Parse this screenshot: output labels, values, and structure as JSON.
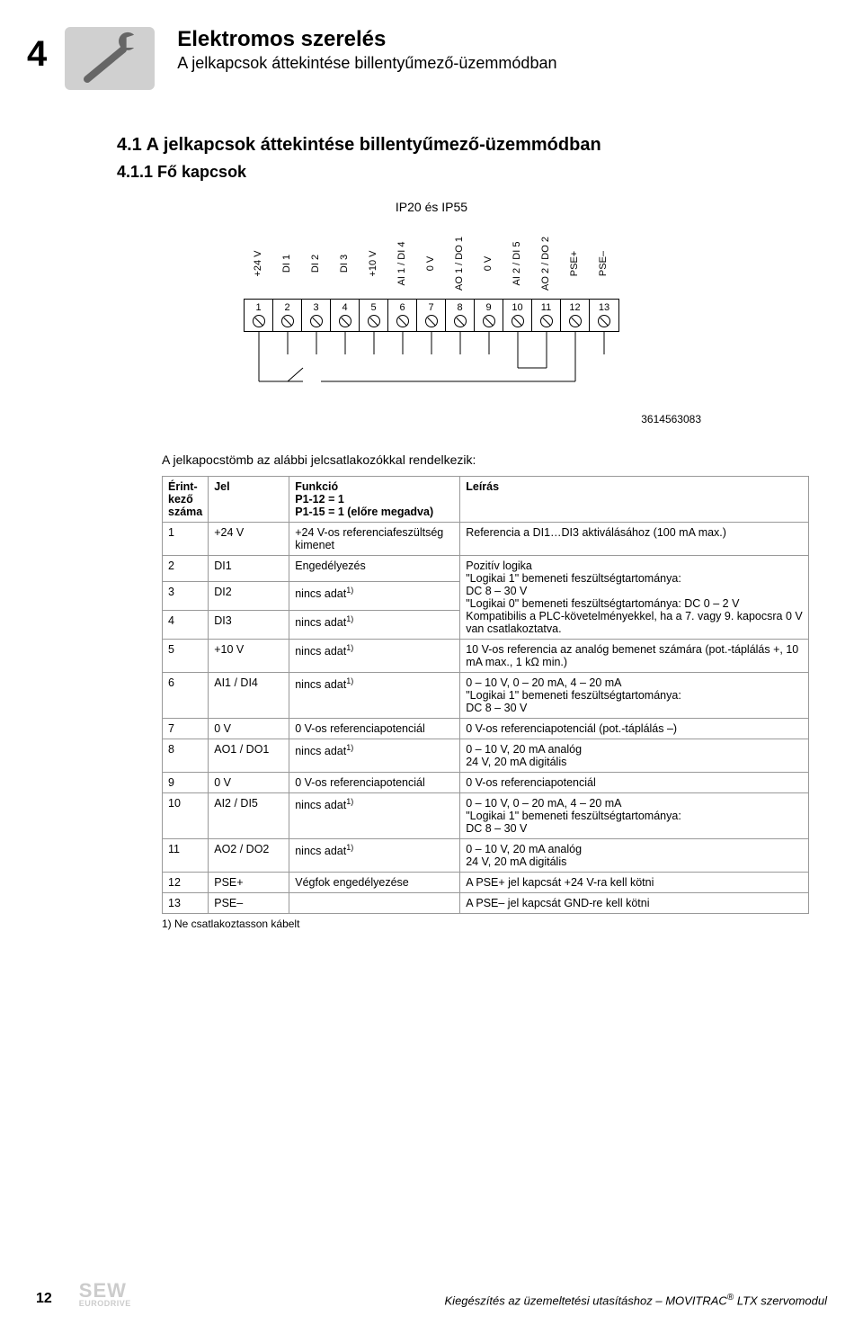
{
  "chapter_number": "4",
  "header": {
    "title": "Elektromos szerelés",
    "subtitle": "A jelkapcsok áttekintése billentyűmező-üzemmódban"
  },
  "section": {
    "number_title": "4.1   A jelkapcsok áttekintése billentyűmező-üzemmódban",
    "sub_number_title": "4.1.1   Fő kapcsok"
  },
  "diagram": {
    "caption": "IP20 és IP55",
    "terminals": [
      {
        "num": "1",
        "label": "+24 V"
      },
      {
        "num": "2",
        "label": "DI 1"
      },
      {
        "num": "3",
        "label": "DI 2"
      },
      {
        "num": "4",
        "label": "DI 3"
      },
      {
        "num": "5",
        "label": "+10 V"
      },
      {
        "num": "6",
        "label": "AI 1 / DI 4"
      },
      {
        "num": "7",
        "label": "0 V"
      },
      {
        "num": "8",
        "label": "AO 1 / DO 1"
      },
      {
        "num": "9",
        "label": "0 V"
      },
      {
        "num": "10",
        "label": "AI 2 / DI 5"
      },
      {
        "num": "11",
        "label": "AO 2 / DO 2"
      },
      {
        "num": "12",
        "label": "PSE+"
      },
      {
        "num": "13",
        "label": "PSE–"
      }
    ],
    "id": "3614563083"
  },
  "table": {
    "intro": "A jelkapocstömb az alábbi jelcsatlakozókkal rendelkezik:",
    "headers": {
      "num": "Érint-\nkező\nszáma",
      "jel": "Jel",
      "func": "Funkció\nP1-12 = 1\nP1-15 = 1 (előre megadva)",
      "desc": "Leírás"
    },
    "rows": [
      {
        "num": "1",
        "jel": "+24 V",
        "func": "+24 V-os referenciafeszültség kimenet",
        "desc": "Referencia a DI1…DI3 aktiválásához (100 mA max.)",
        "rowspan": 1
      },
      {
        "num": "2",
        "jel": "DI1",
        "func": "Engedélyezés",
        "desc": "Pozitív logika\n\"Logikai 1\" bemeneti feszültségtartománya:\nDC 8 – 30 V\n\"Logikai 0\" bemeneti feszültségtartománya: DC 0 – 2 V\nKompatibilis a PLC-követelményekkel, ha a 7. vagy 9. kapocsra 0 V van csatlakoztatva.",
        "rowspan": 3
      },
      {
        "num": "3",
        "jel": "DI2",
        "func": "nincs adat<sup>1)</sup>"
      },
      {
        "num": "4",
        "jel": "DI3",
        "func": "nincs adat<sup>1)</sup>"
      },
      {
        "num": "5",
        "jel": "+10 V",
        "func": "nincs adat<sup>1)</sup>",
        "desc": "10 V-os referencia az analóg bemenet számára (pot.-táplálás +, 10 mA max., 1 kΩ min.)"
      },
      {
        "num": "6",
        "jel": "AI1 / DI4",
        "func": "nincs adat<sup>1)</sup>",
        "desc": "0 – 10 V, 0 – 20 mA, 4 – 20 mA\n\"Logikai 1\" bemeneti feszültségtartománya:\nDC 8 – 30 V"
      },
      {
        "num": "7",
        "jel": "0 V",
        "func": "0 V-os referenciapotenciál",
        "desc": "0 V-os referenciapotenciál (pot.-táplálás –)"
      },
      {
        "num": "8",
        "jel": "AO1 / DO1",
        "func": "nincs adat<sup>1)</sup>",
        "desc": "0 – 10 V, 20 mA analóg\n24 V, 20 mA digitális"
      },
      {
        "num": "9",
        "jel": "0 V",
        "func": "0 V-os referenciapotenciál",
        "desc": "0 V-os referenciapotenciál"
      },
      {
        "num": "10",
        "jel": "AI2 / DI5",
        "func": "nincs adat<sup>1)</sup>",
        "desc": "0 – 10 V, 0 – 20 mA, 4 – 20 mA\n\"Logikai 1\" bemeneti feszültségtartománya:\nDC 8 – 30 V"
      },
      {
        "num": "11",
        "jel": "AO2 / DO2",
        "func": "nincs adat<sup>1)</sup>",
        "desc": "0 – 10 V, 20 mA analóg\n24 V, 20 mA digitális"
      },
      {
        "num": "12",
        "jel": "PSE+",
        "func": "Végfok engedélyezése",
        "desc": "A PSE+ jel kapcsát +24 V-ra kell kötni"
      },
      {
        "num": "13",
        "jel": "PSE–",
        "func": "",
        "desc": "A PSE– jel kapcsát GND-re kell kötni"
      }
    ],
    "footnote": "1)  Ne csatlakoztasson kábelt"
  },
  "footer": {
    "page": "12",
    "logo_main": "SEW",
    "logo_sub": "EURODRIVE",
    "text_prefix": "Kiegészítés az üzemeltetési utasításhoz – MOVITRAC",
    "text_suffix": " LTX szervomodul"
  }
}
